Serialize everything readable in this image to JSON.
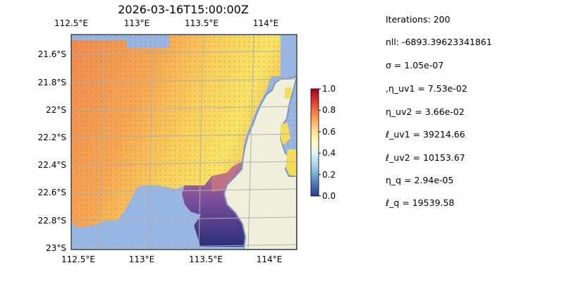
{
  "map": {
    "title": "2026-03-16T15:00:00Z",
    "lon_ticks": [
      "112.5°E",
      "113°E",
      "113.5°E",
      "114°E"
    ],
    "lat_ticks": [
      "21.6°S",
      "21.8°S",
      "22°S",
      "22.2°S",
      "22.4°S",
      "22.6°S",
      "22.8°S",
      "23°S"
    ],
    "colors": {
      "ocean": "#97b6e1",
      "land": "#efefdb",
      "coast": "#7f96c4",
      "grid": "#b0b0b0"
    }
  },
  "colorbar": {
    "ticks": [
      "0.0",
      "0.2",
      "0.4",
      "0.6",
      "0.8",
      "1.0"
    ],
    "colormap": "RdYlBu_r"
  },
  "stats": [
    "Iterations: 200",
    "nll: -6893.39623341861",
    "σ = 1.05e-07",
    ",η_uv1 = 7.53e-02",
    "η_uv2 = 3.66e-02",
    "ℓ_uv1 = 39214.66",
    "ℓ_uv2 = 10153.67",
    "η_q = 2.94e-05",
    "ℓ_q = 19539.58"
  ]
}
